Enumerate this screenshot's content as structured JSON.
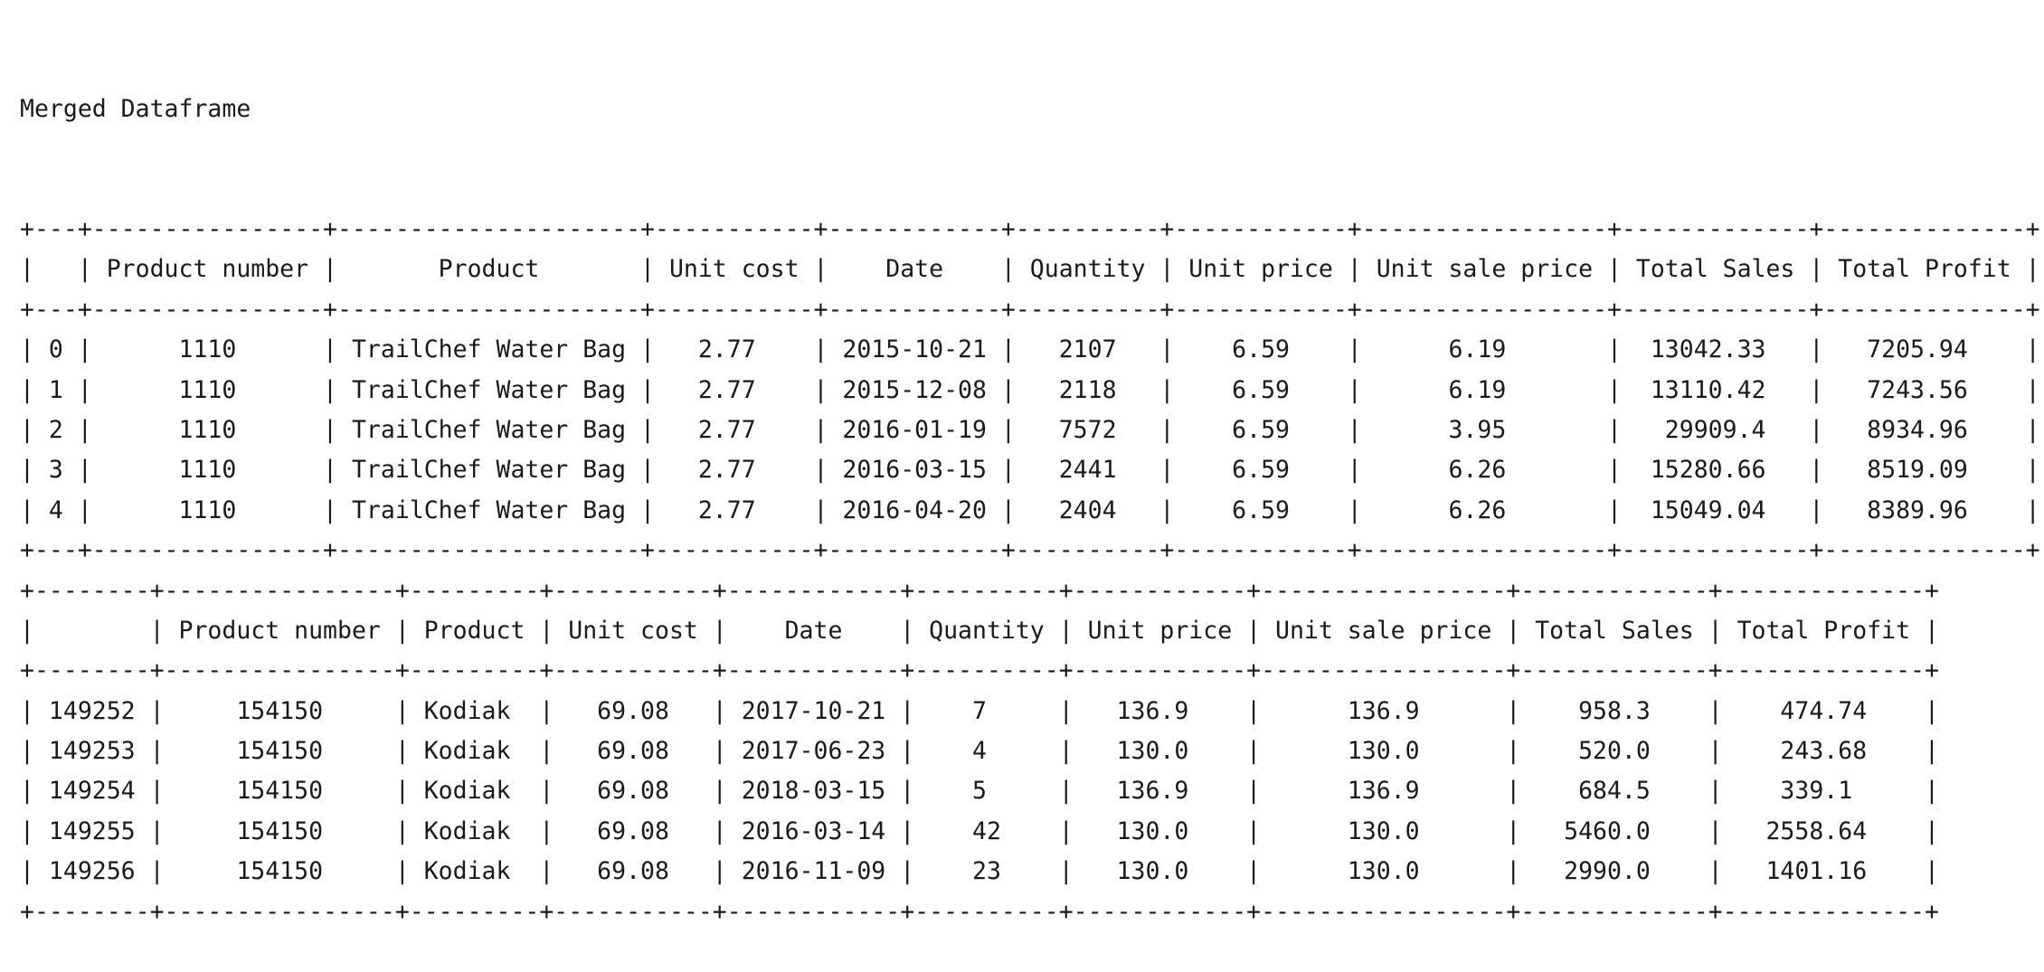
{
  "output": {
    "title": "Merged Dataframe",
    "tables": [
      {
        "columns": [
          "",
          "Product number",
          "Product",
          "Unit cost",
          "Date",
          "Quantity",
          "Unit price",
          "Unit sale price",
          "Total Sales",
          "Total Profit"
        ],
        "rows": [
          [
            "0",
            "1110",
            "TrailChef Water Bag",
            "2.77",
            "2015-10-21",
            "2107",
            "6.59",
            "6.19",
            "13042.33",
            "7205.94"
          ],
          [
            "1",
            "1110",
            "TrailChef Water Bag",
            "2.77",
            "2015-12-08",
            "2118",
            "6.59",
            "6.19",
            "13110.42",
            "7243.56"
          ],
          [
            "2",
            "1110",
            "TrailChef Water Bag",
            "2.77",
            "2016-01-19",
            "7572",
            "6.59",
            "3.95",
            "29909.4",
            "8934.96"
          ],
          [
            "3",
            "1110",
            "TrailChef Water Bag",
            "2.77",
            "2016-03-15",
            "2441",
            "6.59",
            "6.26",
            "15280.66",
            "8519.09"
          ],
          [
            "4",
            "1110",
            "TrailChef Water Bag",
            "2.77",
            "2016-04-20",
            "2404",
            "6.59",
            "6.26",
            "15049.04",
            "8389.96"
          ]
        ]
      },
      {
        "columns": [
          "",
          "Product number",
          "Product",
          "Unit cost",
          "Date",
          "Quantity",
          "Unit price",
          "Unit sale price",
          "Total Sales",
          "Total Profit"
        ],
        "rows": [
          [
            "149252",
            "154150",
            "Kodiak",
            "69.08",
            "2017-10-21",
            "7",
            "136.9",
            "136.9",
            "958.3",
            "474.74"
          ],
          [
            "149253",
            "154150",
            "Kodiak",
            "69.08",
            "2017-06-23",
            "4",
            "130.0",
            "130.0",
            "520.0",
            "243.68"
          ],
          [
            "149254",
            "154150",
            "Kodiak",
            "69.08",
            "2018-03-15",
            "5",
            "136.9",
            "136.9",
            "684.5",
            "339.1"
          ],
          [
            "149255",
            "154150",
            "Kodiak",
            "69.08",
            "2016-03-14",
            "42",
            "130.0",
            "130.0",
            "5460.0",
            "2558.64"
          ],
          [
            "149256",
            "154150",
            "Kodiak",
            "69.08",
            "2016-11-09",
            "23",
            "130.0",
            "130.0",
            "2990.0",
            "1401.16"
          ]
        ]
      }
    ]
  }
}
